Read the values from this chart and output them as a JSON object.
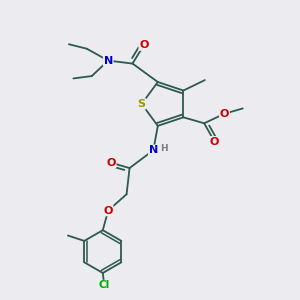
{
  "bg_color": "#ebebf0",
  "bond_color": "#2d5a4a",
  "atom_colors": {
    "N": "#0000cc",
    "O": "#cc0000",
    "S": "#999900",
    "Cl": "#00aa00",
    "H": "#7a7a7a",
    "C": "#2d5a4a"
  }
}
